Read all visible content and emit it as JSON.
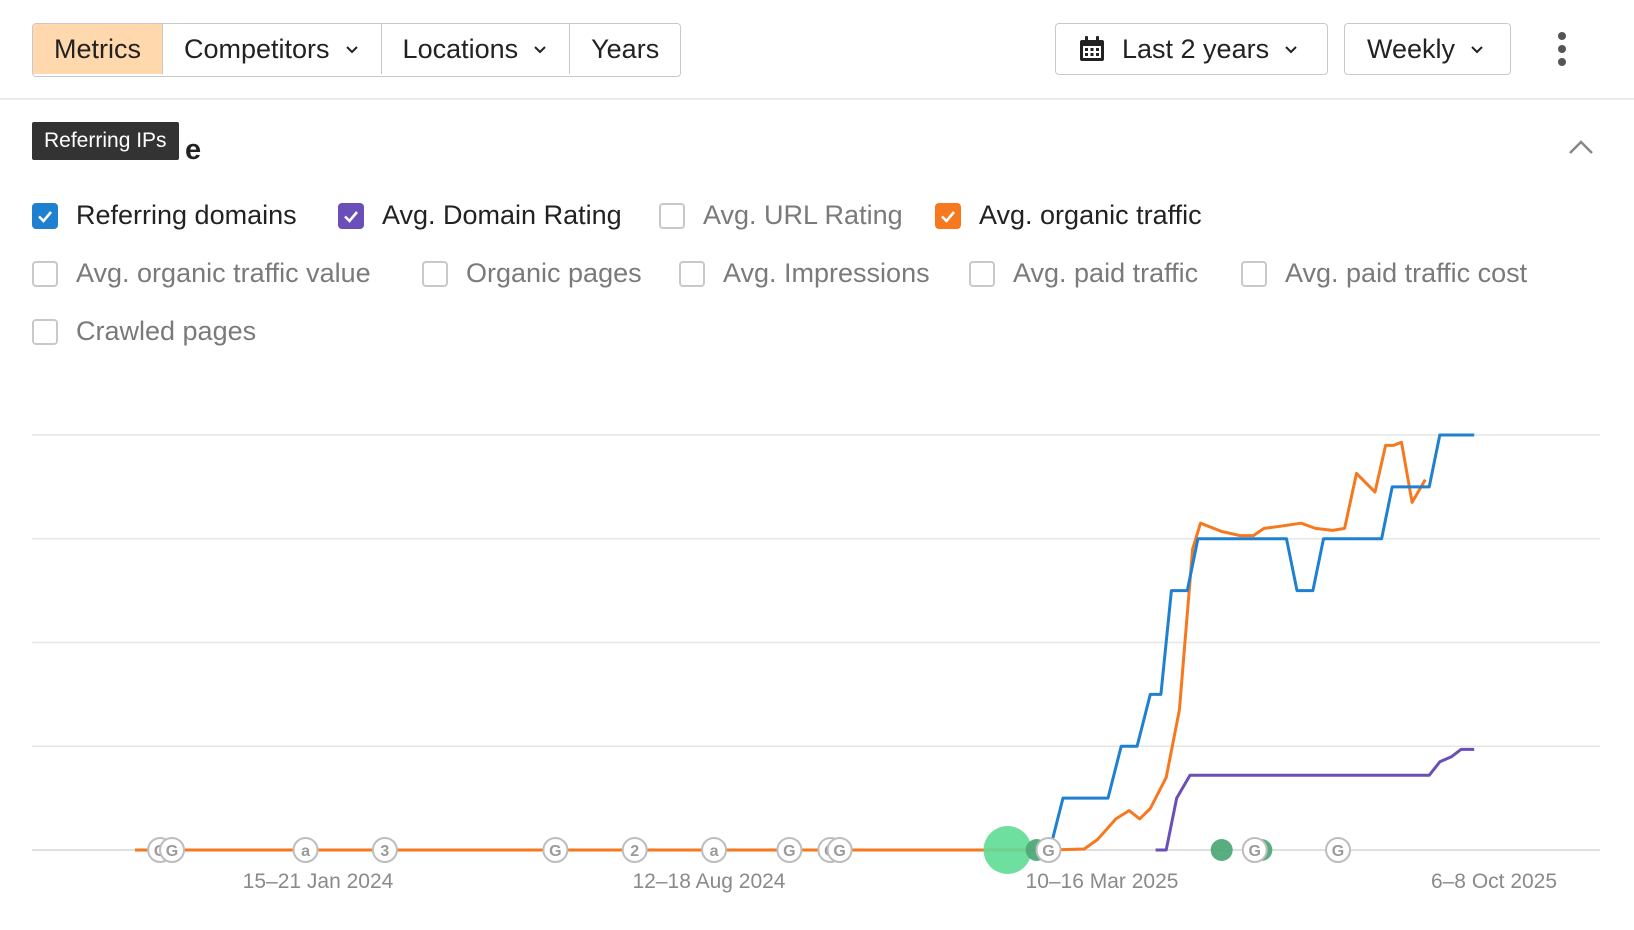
{
  "toolbar": {
    "tabs": [
      {
        "label": "Metrics",
        "active": true,
        "dropdown": false
      },
      {
        "label": "Competitors",
        "active": false,
        "dropdown": true
      },
      {
        "label": "Locations",
        "active": false,
        "dropdown": true
      },
      {
        "label": "Years",
        "active": false,
        "dropdown": false
      }
    ],
    "date_range": {
      "icon": "calendar-icon",
      "label": "Last 2 years"
    },
    "interval": {
      "label": "Weekly"
    },
    "more_icon": "more-vertical-icon"
  },
  "tooltip": {
    "text": "Referring IPs"
  },
  "section": {
    "title_suffix": "e",
    "collapse_icon": "chevron-up-icon"
  },
  "metrics": [
    {
      "label": "Referring domains",
      "checked": true,
      "color": "#1f80d1"
    },
    {
      "label": "Avg. Domain Rating",
      "checked": true,
      "color": "#6a4fb8"
    },
    {
      "label": "Avg. URL Rating",
      "checked": false,
      "color": null
    },
    {
      "label": "Avg. organic traffic",
      "checked": true,
      "color": "#f6781f"
    },
    {
      "label": "Avg. organic traffic value",
      "checked": false,
      "color": null
    },
    {
      "label": "Organic pages",
      "checked": false,
      "color": null
    },
    {
      "label": "Avg. Impressions",
      "checked": false,
      "color": null
    },
    {
      "label": "Avg. paid traffic",
      "checked": false,
      "color": null
    },
    {
      "label": "Avg. paid traffic cost",
      "checked": false,
      "color": null
    },
    {
      "label": "Crawled pages",
      "checked": false,
      "color": null
    }
  ],
  "chart_data": {
    "type": "line",
    "x_tick_labels": [
      "15–21 Jan 2024",
      "12–18 Aug 2024",
      "10–16 Mar 2025",
      "6–8 Oct 2025"
    ],
    "x_range": [
      0,
      100
    ],
    "y_range": [
      0,
      4
    ],
    "grid": true,
    "series": [
      {
        "name": "Referring domains",
        "color": "#1f80d1",
        "points": [
          [
            69.2,
            0
          ],
          [
            70.2,
            0.5
          ],
          [
            73.6,
            0.5
          ],
          [
            74.6,
            1
          ],
          [
            75.8,
            1
          ],
          [
            76.8,
            1.5
          ],
          [
            77.6,
            1.5
          ],
          [
            78.4,
            2.5
          ],
          [
            79.6,
            2.5
          ],
          [
            80.4,
            3
          ],
          [
            87.1,
            3
          ],
          [
            87.9,
            2.5
          ],
          [
            89.1,
            2.5
          ],
          [
            89.9,
            3
          ],
          [
            94.3,
            3
          ],
          [
            95.1,
            3.5
          ],
          [
            97.9,
            3.5
          ],
          [
            98.7,
            4
          ],
          [
            101.3,
            4
          ]
        ]
      },
      {
        "name": "Avg. Domain Rating",
        "color": "#6a4fb8",
        "points": [
          [
            77.2,
            0
          ],
          [
            78.0,
            0
          ],
          [
            78.8,
            0.5
          ],
          [
            79.8,
            0.72
          ],
          [
            97.9,
            0.72
          ],
          [
            98.7,
            0.85
          ],
          [
            99.6,
            0.9
          ],
          [
            100.3,
            0.97
          ],
          [
            101.3,
            0.97
          ]
        ]
      },
      {
        "name": "Avg. organic traffic",
        "color": "#f6781f",
        "points": [
          [
            0,
            0
          ],
          [
            69.2,
            0
          ],
          [
            71.8,
            0.01
          ],
          [
            72.8,
            0.1
          ],
          [
            74.2,
            0.3
          ],
          [
            75.2,
            0.38
          ],
          [
            76.0,
            0.3
          ],
          [
            76.8,
            0.4
          ],
          [
            78.0,
            0.7
          ],
          [
            79.0,
            1.35
          ],
          [
            80.0,
            2.9
          ],
          [
            80.6,
            3.15
          ],
          [
            82.2,
            3.07
          ],
          [
            83.6,
            3.03
          ],
          [
            84.6,
            3.03
          ],
          [
            85.4,
            3.1
          ],
          [
            86.6,
            3.12
          ],
          [
            88.2,
            3.15
          ],
          [
            89.3,
            3.1
          ],
          [
            90.6,
            3.08
          ],
          [
            91.5,
            3.1
          ],
          [
            92.4,
            3.63
          ],
          [
            93.8,
            3.45
          ],
          [
            94.6,
            3.9
          ],
          [
            95.2,
            3.9
          ],
          [
            95.8,
            3.93
          ],
          [
            96.6,
            3.35
          ],
          [
            97.6,
            3.57
          ]
        ]
      }
    ],
    "event_markers": [
      {
        "label": "G",
        "x": 1.9
      },
      {
        "label": "G",
        "x": 2.8
      },
      {
        "label": "a",
        "x": 12.9
      },
      {
        "label": "3",
        "x": 18.9
      },
      {
        "label": "G",
        "x": 31.8
      },
      {
        "label": "2",
        "x": 37.8
      },
      {
        "label": "a",
        "x": 43.8
      },
      {
        "label": "G",
        "x": 49.5
      },
      {
        "label": "G",
        "x": 52.6
      },
      {
        "label": "G",
        "x": 53.3
      },
      {
        "label": "G",
        "x": 69.1
      },
      {
        "label": "G",
        "x": 84.7
      },
      {
        "label": "G",
        "x": 91.0
      }
    ],
    "annotation_dots": [
      {
        "x": 66.0,
        "size": "large"
      },
      {
        "x": 68.2,
        "size": "small"
      },
      {
        "x": 82.2,
        "size": "small"
      },
      {
        "x": 85.2,
        "size": "small"
      }
    ]
  }
}
